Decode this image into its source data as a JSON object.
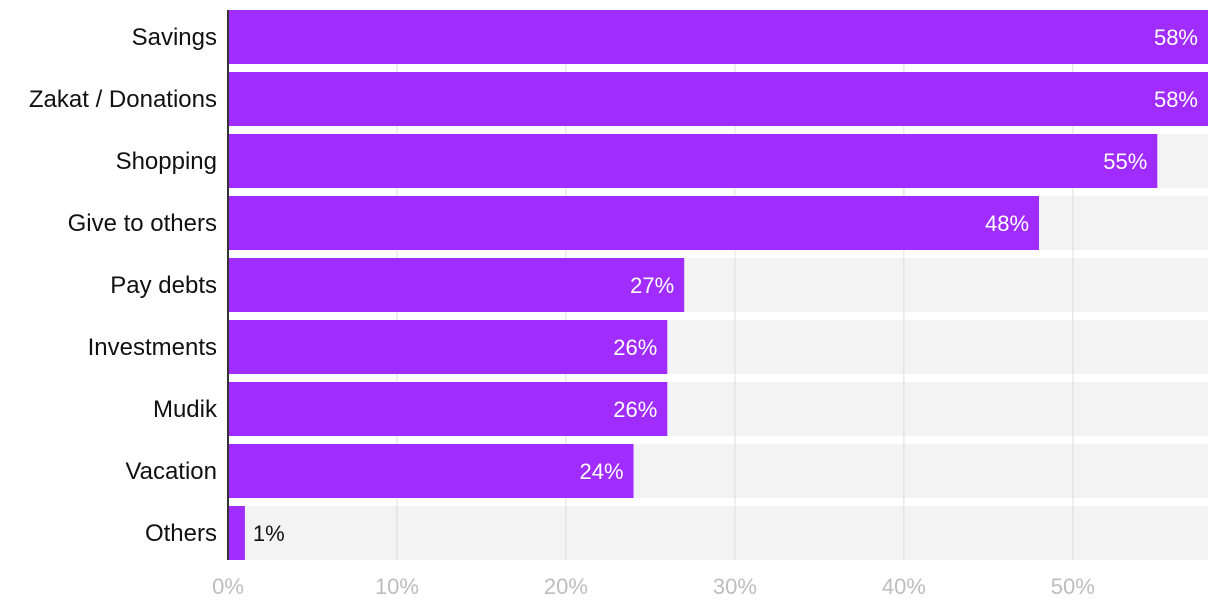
{
  "chart_data": {
    "type": "bar",
    "orientation": "horizontal",
    "categories": [
      "Savings",
      "Zakat / Donations",
      "Shopping",
      "Give to others",
      "Pay debts",
      "Investments",
      "Mudik",
      "Vacation",
      "Others"
    ],
    "values": [
      58,
      58,
      55,
      48,
      27,
      26,
      26,
      24,
      1
    ],
    "value_labels": [
      "58%",
      "58%",
      "55%",
      "48%",
      "27%",
      "26%",
      "26%",
      "24%",
      "1%"
    ],
    "xlim": [
      0,
      58
    ],
    "x_ticks": [
      0,
      10,
      20,
      30,
      40,
      50
    ],
    "x_tick_labels": [
      "0%",
      "10%",
      "20%",
      "30%",
      "40%",
      "50%"
    ],
    "grid": true,
    "colors": {
      "bar": "#a12cff",
      "track": "#f3f3f3",
      "grid": "#dcdcdc",
      "axis": "#333333",
      "label_inside": "#ffffff",
      "label_outside": "#111111",
      "tick_text": "#bdbdbd"
    }
  }
}
